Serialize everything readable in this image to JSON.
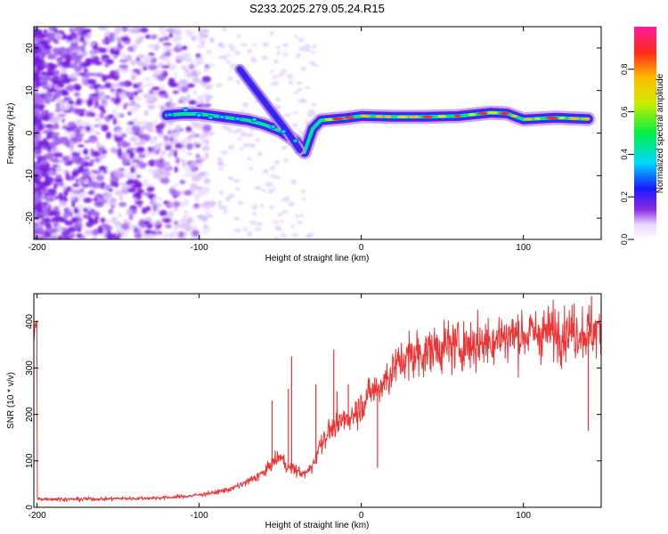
{
  "title": "S233.2025.279.05.24.R15",
  "chart_data": [
    {
      "type": "heatmap",
      "xlabel": "Height of straight line (km)",
      "ylabel": "Frequency (Hz)",
      "xlim": [
        -202,
        148
      ],
      "ylim": [
        -25,
        25
      ],
      "xticks": [
        -200,
        -100,
        0,
        100
      ],
      "yticks": [
        -20,
        -10,
        0,
        10,
        20
      ],
      "x_tick_labels": [
        "-200",
        "-100",
        "0",
        "100"
      ],
      "y_tick_labels": [
        "-20",
        "-10",
        "0",
        "10",
        "20"
      ],
      "colorbar": {
        "label": "Normalized spectral amplitude",
        "range": [
          0,
          1
        ],
        "ticks": [
          0.0,
          0.2,
          0.4,
          0.6,
          0.8
        ],
        "tick_labels": [
          "0.0",
          "0.2",
          "0.4",
          "0.6",
          "0.8"
        ],
        "colormap": "rainbow (white-violet-blue-cyan-green-yellow-red-magenta)"
      },
      "ridge": [
        {
          "x": -120,
          "y": 4.2
        },
        {
          "x": -110,
          "y": 4.5
        },
        {
          "x": -100,
          "y": 4.5
        },
        {
          "x": -90,
          "y": 4.0
        },
        {
          "x": -80,
          "y": 3.5
        },
        {
          "x": -70,
          "y": 3.0
        },
        {
          "x": -60,
          "y": 2.0
        },
        {
          "x": -50,
          "y": 0.5
        },
        {
          "x": -40,
          "y": -2.0
        },
        {
          "x": -35,
          "y": -4.5
        },
        {
          "x": -30,
          "y": 1.0
        },
        {
          "x": -25,
          "y": 3.0
        },
        {
          "x": -10,
          "y": 3.5
        },
        {
          "x": 0,
          "y": 4.0
        },
        {
          "x": 20,
          "y": 3.8
        },
        {
          "x": 40,
          "y": 3.8
        },
        {
          "x": 60,
          "y": 4.0
        },
        {
          "x": 80,
          "y": 4.8
        },
        {
          "x": 90,
          "y": 4.6
        },
        {
          "x": 100,
          "y": 3.2
        },
        {
          "x": 120,
          "y": 3.6
        },
        {
          "x": 140,
          "y": 3.3
        }
      ],
      "diagonal_branch": [
        {
          "x": -75,
          "y": 15
        },
        {
          "x": -65,
          "y": 10
        },
        {
          "x": -55,
          "y": 5
        },
        {
          "x": -45,
          "y": 0
        },
        {
          "x": -38,
          "y": -4
        }
      ]
    },
    {
      "type": "line",
      "xlabel": "Height of straight line (km)",
      "ylabel": "SNR (10 * v/v)",
      "xlim": [
        -202,
        148
      ],
      "ylim": [
        0,
        460
      ],
      "xticks": [
        -200,
        -100,
        0,
        100
      ],
      "yticks": [
        0,
        100,
        200,
        300,
        400
      ],
      "x_tick_labels": [
        "-200",
        "-100",
        "0",
        "100"
      ],
      "y_tick_labels": [
        "0",
        "100",
        "200",
        "300",
        "400"
      ],
      "color": "#ee3333",
      "series": [
        {
          "x": [
            -200,
            -190,
            -180,
            -170,
            -160,
            -150,
            -140,
            -130,
            -120,
            -110,
            -100,
            -90,
            -80,
            -70,
            -60,
            -55,
            -50,
            -45,
            -40,
            -35,
            -30,
            -25,
            -20,
            -15,
            -10,
            -5,
            0,
            5,
            10,
            15,
            20,
            25,
            30,
            40,
            50,
            60,
            70,
            80,
            90,
            100,
            110,
            120,
            130,
            140,
            148
          ],
          "values": [
            18,
            18,
            17,
            18,
            18,
            19,
            19,
            20,
            21,
            23,
            27,
            32,
            40,
            55,
            75,
            95,
            110,
            85,
            80,
            70,
            90,
            140,
            165,
            175,
            190,
            200,
            220,
            245,
            255,
            275,
            300,
            315,
            325,
            335,
            345,
            348,
            352,
            360,
            370,
            372,
            375,
            378,
            380,
            378,
            382
          ]
        }
      ],
      "spikes": [
        {
          "x": -55,
          "y": 230
        },
        {
          "x": -45,
          "y": 255
        },
        {
          "x": -43,
          "y": 325
        },
        {
          "x": -28,
          "y": 265
        },
        {
          "x": -17,
          "y": 340
        },
        {
          "x": -15,
          "y": 250
        },
        {
          "x": -8,
          "y": 265
        },
        {
          "x": 10,
          "y": 85
        },
        {
          "x": 140,
          "y": 165
        },
        {
          "x": 142,
          "y": 455
        },
        {
          "x": 148,
          "y": 440
        }
      ]
    }
  ]
}
